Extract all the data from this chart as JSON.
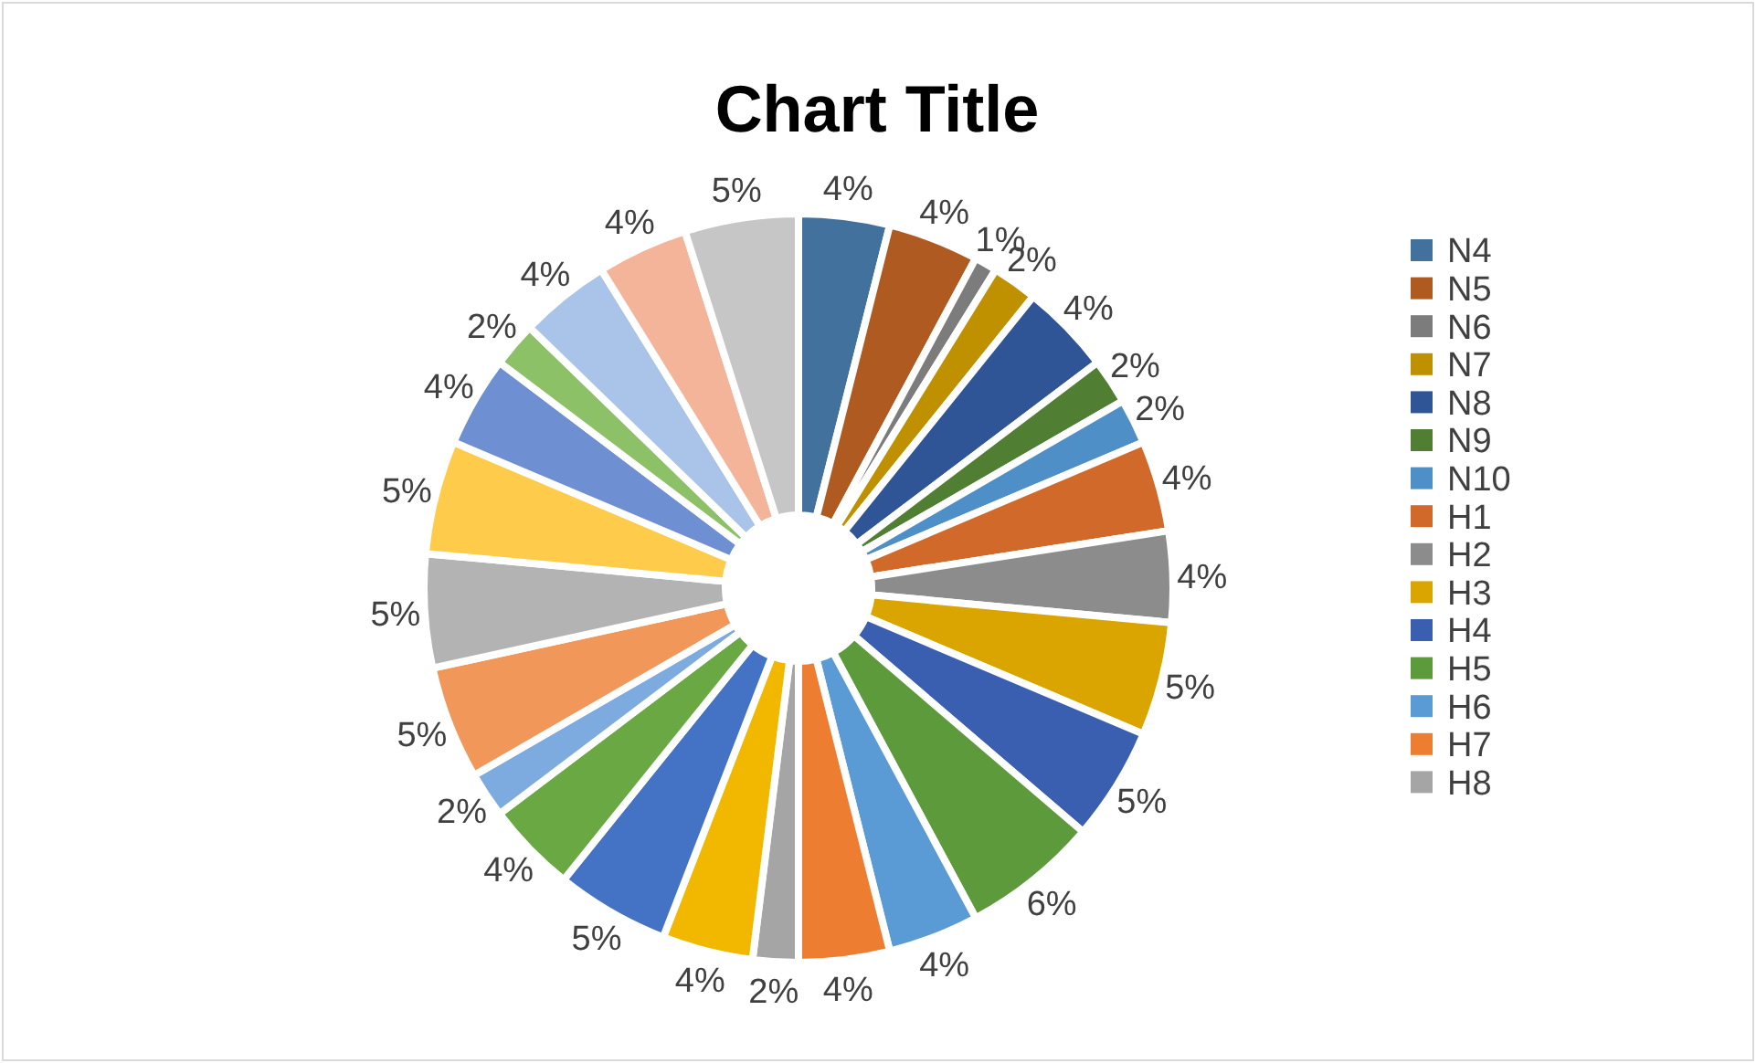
{
  "chart_data": {
    "type": "donut",
    "title": "Chart Title",
    "legend": "right",
    "data_labels": true,
    "categories": [
      "N4",
      "N5",
      "N6",
      "N7",
      "N8",
      "N9",
      "N10",
      "H1",
      "H2",
      "H3",
      "H4",
      "H5",
      "H6",
      "H7",
      "H8",
      null,
      null,
      null,
      null,
      null,
      null,
      null,
      null,
      null,
      null,
      null,
      null
    ],
    "values": [
      4,
      4,
      1,
      2,
      4,
      2,
      2,
      4,
      4,
      5,
      5,
      6,
      4,
      4,
      2,
      4,
      5,
      4,
      2,
      5,
      5,
      5,
      4,
      2,
      4,
      4,
      5
    ],
    "value_labels": [
      "4%",
      "4%",
      "1%",
      "2%",
      "4%",
      "2%",
      "2%",
      "4%",
      "4%",
      "5%",
      "5%",
      "6%",
      "4%",
      "4%",
      "2%",
      "4%",
      "5%",
      "4%",
      "2%",
      "5%",
      "5%",
      "5%",
      "4%",
      "2%",
      "4%",
      "4%",
      "5%"
    ],
    "colors": [
      "#41719c",
      "#ae5a21",
      "#7c7c7c",
      "#bf9000",
      "#2f5597",
      "#507e32",
      "#4f8fc8",
      "#d0692a",
      "#8c8c8c",
      "#dba500",
      "#3a5fb0",
      "#5c9a3b",
      "#5b9bd5",
      "#ed7d31",
      "#a5a5a5",
      "#f2b800",
      "#4472c4",
      "#6aa844",
      "#7eabdf",
      "#f1975a",
      "#b3b3b3",
      "#ffcb4a",
      "#6e8fd2",
      "#8cc168",
      "#a9c4e8",
      "#f4b49a",
      "#c6c6c6"
    ]
  }
}
